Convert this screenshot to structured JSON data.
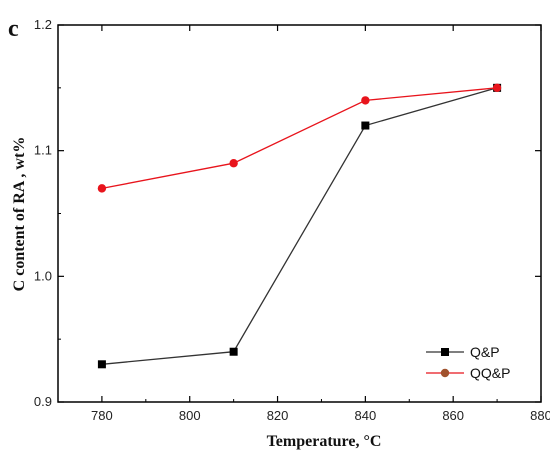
{
  "panel_label": "c",
  "chart_data": {
    "type": "line",
    "xlabel": "Temperature, °C",
    "ylabel": "C content of RA , wt%",
    "x": [
      780,
      810,
      840,
      870
    ],
    "xlim": [
      770,
      880
    ],
    "ylim": [
      0.9,
      1.2
    ],
    "x_ticks": [
      780,
      800,
      820,
      840,
      860,
      880
    ],
    "y_ticks": [
      0.9,
      1.0,
      1.1,
      1.2
    ],
    "x_tick_labels": [
      "780",
      "800",
      "820",
      "840",
      "860",
      "880"
    ],
    "y_tick_labels": [
      "0.9",
      "1.0",
      "1.1",
      "1.2"
    ],
    "legend_position": "bottom-right",
    "grid": false,
    "series": [
      {
        "name": "Q&P",
        "values": [
          0.93,
          0.94,
          1.12,
          1.15
        ],
        "color": "#000000",
        "marker": "square",
        "line_color": "#333333"
      },
      {
        "name": "QQ&P",
        "values": [
          1.07,
          1.09,
          1.14,
          1.15
        ],
        "color": "#e8141c",
        "marker": "circle",
        "legend_marker_color": "#a0522d",
        "line_color": "#e8141c"
      }
    ]
  }
}
